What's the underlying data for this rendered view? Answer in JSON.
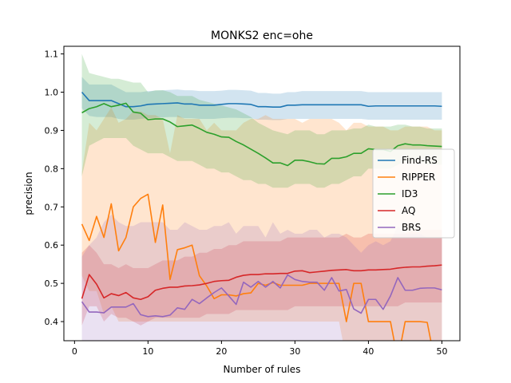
{
  "chart_data": {
    "type": "line",
    "title": "MONKS2 enc=ohe",
    "xlabel": "Number of rules",
    "ylabel": "precision",
    "xlim": [
      -1.45,
      52.45
    ],
    "ylim": [
      0.35,
      1.12
    ],
    "xticks": [
      0,
      10,
      20,
      30,
      40,
      50
    ],
    "yticks": [
      0.4,
      0.5,
      0.6,
      0.7,
      0.8,
      0.9,
      1.0,
      1.1
    ],
    "xtick_labels": [
      "0",
      "10",
      "20",
      "30",
      "40",
      "50"
    ],
    "ytick_labels": [
      "0.4",
      "0.5",
      "0.6",
      "0.7",
      "0.8",
      "0.9",
      "1.0",
      "1.1"
    ],
    "legend_position": "center-right",
    "x": [
      1,
      2,
      3,
      4,
      5,
      6,
      7,
      8,
      9,
      10,
      11,
      12,
      13,
      14,
      15,
      16,
      17,
      18,
      19,
      20,
      21,
      22,
      23,
      24,
      25,
      26,
      27,
      28,
      29,
      30,
      31,
      32,
      33,
      34,
      35,
      36,
      37,
      38,
      39,
      40,
      41,
      42,
      43,
      44,
      45,
      46,
      47,
      48,
      49,
      50
    ],
    "series": [
      {
        "name": "Find-RS",
        "color": "#1f77b4",
        "values": [
          1.0,
          0.978,
          0.978,
          0.978,
          0.978,
          0.97,
          0.962,
          0.962,
          0.964,
          0.968,
          0.969,
          0.97,
          0.971,
          0.972,
          0.969,
          0.969,
          0.966,
          0.966,
          0.966,
          0.968,
          0.97,
          0.97,
          0.969,
          0.968,
          0.962,
          0.962,
          0.961,
          0.961,
          0.966,
          0.966,
          0.967,
          0.967,
          0.967,
          0.967,
          0.967,
          0.967,
          0.967,
          0.967,
          0.967,
          0.963,
          0.964,
          0.964,
          0.964,
          0.964,
          0.964,
          0.964,
          0.964,
          0.964,
          0.964,
          0.963
        ],
        "lower": [
          0.958,
          0.938,
          0.935,
          0.935,
          0.935,
          0.93,
          0.928,
          0.928,
          0.93,
          0.932,
          0.933,
          0.934,
          0.935,
          0.935,
          0.932,
          0.932,
          0.93,
          0.93,
          0.93,
          0.932,
          0.933,
          0.933,
          0.932,
          0.932,
          0.928,
          0.928,
          0.927,
          0.927,
          0.93,
          0.93,
          0.93,
          0.93,
          0.93,
          0.93,
          0.93,
          0.93,
          0.93,
          0.93,
          0.93,
          0.928,
          0.928,
          0.928,
          0.928,
          0.928,
          0.928,
          0.928,
          0.928,
          0.928,
          0.928,
          0.928
        ],
        "upper": [
          1.04,
          1.02,
          1.02,
          1.02,
          1.02,
          1.01,
          1.0,
          1.0,
          1.0,
          1.003,
          1.004,
          1.005,
          1.006,
          1.007,
          1.005,
          1.005,
          1.003,
          1.003,
          1.003,
          1.004,
          1.006,
          1.006,
          1.005,
          1.004,
          0.998,
          0.998,
          0.996,
          0.996,
          1.0,
          1.0,
          1.003,
          1.003,
          1.003,
          1.003,
          1.003,
          1.003,
          1.003,
          1.003,
          1.003,
          1.0,
          1.0,
          1.0,
          1.0,
          1.0,
          1.0,
          1.0,
          1.0,
          1.0,
          1.0,
          1.0
        ]
      },
      {
        "name": "RIPPER",
        "color": "#ff7f0e",
        "values": [
          0.655,
          0.612,
          0.675,
          0.62,
          0.708,
          0.585,
          0.62,
          0.7,
          0.722,
          0.733,
          0.607,
          0.705,
          0.51,
          0.588,
          0.593,
          0.6,
          0.52,
          0.493,
          0.46,
          0.47,
          0.47,
          0.467,
          0.473,
          0.475,
          0.5,
          0.495,
          0.502,
          0.495,
          0.495,
          0.495,
          0.495,
          0.5,
          0.5,
          0.5,
          0.5,
          0.5,
          0.4,
          0.5,
          0.5,
          0.4,
          0.4,
          0.4,
          0.4,
          0.3,
          0.4,
          0.4,
          0.4,
          0.398,
          0.3,
          0.3
        ],
        "lower": [
          0.52,
          0.48,
          0.48,
          0.42,
          0.44,
          0.4,
          0.4,
          0.4,
          0.4,
          0.4,
          0.4,
          0.4,
          0.4,
          0.4,
          0.4,
          0.4,
          0.4,
          0.4,
          0.4,
          0.4,
          0.4,
          0.4,
          0.4,
          0.4,
          0.4,
          0.4,
          0.4,
          0.4,
          0.4,
          0.4,
          0.4,
          0.4,
          0.4,
          0.4,
          0.4,
          0.4,
          0.3,
          0.35,
          0.35,
          0.3,
          0.3,
          0.3,
          0.3,
          0.3,
          0.3,
          0.3,
          0.3,
          0.3,
          0.3,
          0.3
        ],
        "upper": [
          0.79,
          0.92,
          0.9,
          0.93,
          0.96,
          0.92,
          0.93,
          0.95,
          0.95,
          0.94,
          0.94,
          0.93,
          0.84,
          0.94,
          0.93,
          0.93,
          0.93,
          0.9,
          0.92,
          0.9,
          0.9,
          0.9,
          0.92,
          0.93,
          0.93,
          0.94,
          0.93,
          0.93,
          0.93,
          0.93,
          0.92,
          0.93,
          0.93,
          0.93,
          0.93,
          0.92,
          0.9,
          0.92,
          0.92,
          0.91,
          0.91,
          0.91,
          0.9,
          0.9,
          0.91,
          0.91,
          0.91,
          0.91,
          0.9,
          0.9
        ]
      },
      {
        "name": "ID3",
        "color": "#2ca02c",
        "values": [
          0.946,
          0.957,
          0.962,
          0.97,
          0.962,
          0.966,
          0.971,
          0.948,
          0.945,
          0.928,
          0.93,
          0.93,
          0.922,
          0.91,
          0.912,
          0.914,
          0.905,
          0.895,
          0.89,
          0.883,
          0.882,
          0.871,
          0.862,
          0.851,
          0.84,
          0.828,
          0.815,
          0.815,
          0.808,
          0.822,
          0.822,
          0.818,
          0.813,
          0.812,
          0.827,
          0.827,
          0.831,
          0.84,
          0.84,
          0.852,
          0.85,
          0.85,
          0.845,
          0.86,
          0.865,
          0.862,
          0.862,
          0.86,
          0.859,
          0.858
        ],
        "lower": [
          0.78,
          0.86,
          0.87,
          0.88,
          0.88,
          0.88,
          0.88,
          0.86,
          0.85,
          0.84,
          0.84,
          0.84,
          0.83,
          0.82,
          0.82,
          0.82,
          0.81,
          0.8,
          0.8,
          0.79,
          0.79,
          0.78,
          0.77,
          0.77,
          0.76,
          0.76,
          0.75,
          0.75,
          0.75,
          0.76,
          0.76,
          0.76,
          0.75,
          0.75,
          0.76,
          0.76,
          0.77,
          0.78,
          0.78,
          0.8,
          0.8,
          0.8,
          0.8,
          0.81,
          0.82,
          0.82,
          0.82,
          0.81,
          0.81,
          0.81
        ],
        "upper": [
          1.1,
          1.05,
          1.045,
          1.04,
          1.035,
          1.035,
          1.03,
          1.025,
          1.025,
          1.0,
          1.005,
          1.005,
          1.0,
          0.99,
          0.99,
          0.99,
          0.98,
          0.975,
          0.97,
          0.965,
          0.96,
          0.955,
          0.945,
          0.935,
          0.92,
          0.91,
          0.9,
          0.895,
          0.89,
          0.9,
          0.9,
          0.9,
          0.89,
          0.89,
          0.9,
          0.9,
          0.9,
          0.905,
          0.905,
          0.915,
          0.91,
          0.91,
          0.91,
          0.915,
          0.915,
          0.91,
          0.91,
          0.905,
          0.905,
          0.905
        ]
      },
      {
        "name": "AQ",
        "color": "#d62728",
        "values": [
          0.46,
          0.523,
          0.498,
          0.462,
          0.473,
          0.468,
          0.476,
          0.462,
          0.458,
          0.465,
          0.482,
          0.487,
          0.49,
          0.49,
          0.493,
          0.494,
          0.496,
          0.5,
          0.505,
          0.507,
          0.508,
          0.516,
          0.521,
          0.523,
          0.523,
          0.525,
          0.525,
          0.526,
          0.526,
          0.532,
          0.533,
          0.528,
          0.53,
          0.532,
          0.534,
          0.535,
          0.536,
          0.533,
          0.533,
          0.535,
          0.535,
          0.536,
          0.537,
          0.54,
          0.542,
          0.543,
          0.543,
          0.545,
          0.546,
          0.548
        ],
        "lower": [
          0.39,
          0.44,
          0.44,
          0.4,
          0.42,
          0.41,
          0.41,
          0.4,
          0.39,
          0.4,
          0.41,
          0.41,
          0.41,
          0.41,
          0.41,
          0.41,
          0.41,
          0.42,
          0.42,
          0.42,
          0.42,
          0.43,
          0.43,
          0.43,
          0.43,
          0.43,
          0.43,
          0.43,
          0.43,
          0.44,
          0.44,
          0.44,
          0.44,
          0.44,
          0.44,
          0.44,
          0.44,
          0.44,
          0.44,
          0.44,
          0.44,
          0.44,
          0.44,
          0.44,
          0.45,
          0.45,
          0.45,
          0.45,
          0.45,
          0.45
        ],
        "upper": [
          0.58,
          0.6,
          0.58,
          0.55,
          0.55,
          0.54,
          0.55,
          0.54,
          0.54,
          0.54,
          0.55,
          0.56,
          0.56,
          0.56,
          0.57,
          0.57,
          0.58,
          0.58,
          0.59,
          0.59,
          0.6,
          0.6,
          0.61,
          0.61,
          0.61,
          0.61,
          0.61,
          0.61,
          0.62,
          0.62,
          0.62,
          0.62,
          0.62,
          0.62,
          0.62,
          0.62,
          0.63,
          0.62,
          0.62,
          0.63,
          0.63,
          0.63,
          0.63,
          0.63,
          0.63,
          0.64,
          0.64,
          0.64,
          0.64,
          0.64
        ]
      },
      {
        "name": "BRS",
        "color": "#9467bd",
        "values": [
          0.452,
          0.425,
          0.425,
          0.423,
          0.438,
          0.438,
          0.438,
          0.447,
          0.418,
          0.413,
          0.415,
          0.413,
          0.417,
          0.436,
          0.432,
          0.458,
          0.447,
          0.462,
          0.476,
          0.488,
          0.467,
          0.445,
          0.503,
          0.49,
          0.505,
          0.49,
          0.505,
          0.488,
          0.522,
          0.51,
          0.505,
          0.503,
          0.503,
          0.482,
          0.515,
          0.48,
          0.484,
          0.433,
          0.422,
          0.458,
          0.458,
          0.432,
          0.467,
          0.515,
          0.482,
          0.482,
          0.487,
          0.488,
          0.488,
          0.483
        ],
        "lower": [
          0.35,
          0.35,
          0.35,
          0.35,
          0.35,
          0.35,
          0.35,
          0.35,
          0.35,
          0.35,
          0.35,
          0.35,
          0.35,
          0.35,
          0.35,
          0.35,
          0.35,
          0.35,
          0.35,
          0.35,
          0.35,
          0.35,
          0.35,
          0.35,
          0.35,
          0.35,
          0.35,
          0.35,
          0.35,
          0.35,
          0.35,
          0.35,
          0.35,
          0.35,
          0.35,
          0.35,
          0.35,
          0.35,
          0.35,
          0.35,
          0.35,
          0.35,
          0.35,
          0.35,
          0.35,
          0.35,
          0.35,
          0.35,
          0.35,
          0.35
        ],
        "upper": [
          0.57,
          0.6,
          0.62,
          0.66,
          0.68,
          0.66,
          0.65,
          0.65,
          0.66,
          0.66,
          0.66,
          0.66,
          0.64,
          0.64,
          0.66,
          0.65,
          0.64,
          0.64,
          0.65,
          0.65,
          0.66,
          0.63,
          0.65,
          0.65,
          0.65,
          0.62,
          0.66,
          0.63,
          0.64,
          0.63,
          0.63,
          0.64,
          0.64,
          0.62,
          0.63,
          0.63,
          0.62,
          0.6,
          0.58,
          0.6,
          0.61,
          0.6,
          0.61,
          0.65,
          0.63,
          0.63,
          0.63,
          0.62,
          0.62,
          0.62
        ]
      }
    ]
  }
}
